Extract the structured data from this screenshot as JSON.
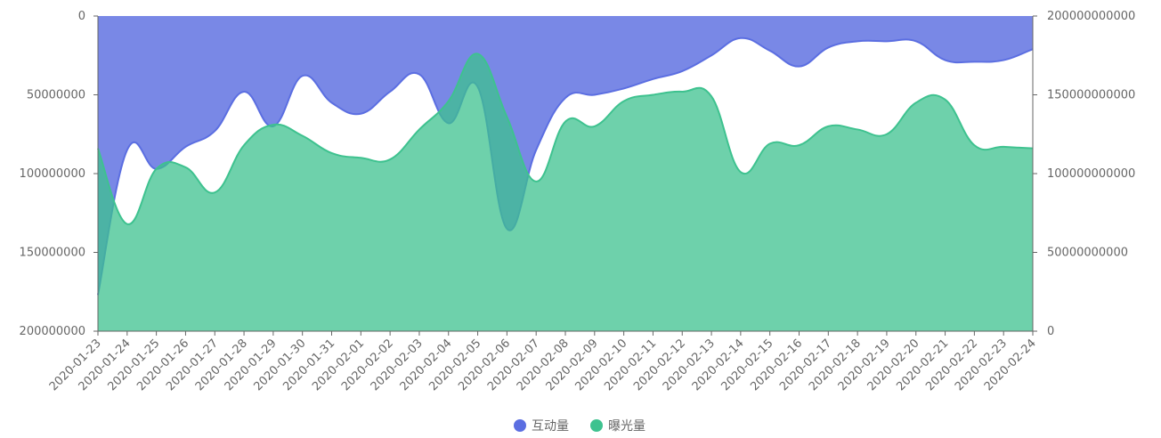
{
  "chart_data": {
    "type": "area",
    "x": [
      "2020-01-23",
      "2020-01-24",
      "2020-01-25",
      "2020-01-26",
      "2020-01-27",
      "2020-01-28",
      "2020-01-29",
      "2020-01-30",
      "2020-01-31",
      "2020-02-01",
      "2020-02-02",
      "2020-02-03",
      "2020-02-04",
      "2020-02-05",
      "2020-02-06",
      "2020-02-07",
      "2020-02-08",
      "2020-02-09",
      "2020-02-10",
      "2020-02-11",
      "2020-02-12",
      "2020-02-13",
      "2020-02-14",
      "2020-02-15",
      "2020-02-16",
      "2020-02-17",
      "2020-02-18",
      "2020-02-19",
      "2020-02-20",
      "2020-02-21",
      "2020-02-22",
      "2020-02-23",
      "2020-02-24"
    ],
    "series": [
      {
        "name": "互动量",
        "axis": "left",
        "inverse": true,
        "color": "#5b6ee1",
        "values": [
          177000000,
          85000000,
          97000000,
          83000000,
          73000000,
          48000000,
          70000000,
          38000000,
          55000000,
          62000000,
          48000000,
          37000000,
          68000000,
          45000000,
          135000000,
          85000000,
          52000000,
          50000000,
          46000000,
          40000000,
          35000000,
          25000000,
          14000000,
          22000000,
          32000000,
          20000000,
          16000000,
          16000000,
          16000000,
          28000000,
          29000000,
          28000000,
          21000000
        ]
      },
      {
        "name": "曝光量",
        "axis": "right",
        "color": "#3ec28f",
        "values": [
          116000000000,
          68000000000,
          103000000000,
          104000000000,
          88000000000,
          118000000000,
          131000000000,
          124000000000,
          113000000000,
          110000000000,
          109000000000,
          128000000000,
          146000000000,
          176000000000,
          136000000000,
          95000000000,
          133000000000,
          130000000000,
          146000000000,
          150000000000,
          152000000000,
          149000000000,
          101000000000,
          119000000000,
          118000000000,
          130000000000,
          128000000000,
          125000000000,
          145000000000,
          147000000000,
          118000000000,
          117000000000,
          116000000000
        ]
      }
    ],
    "y_left": {
      "ticks": [
        "0",
        "50000000",
        "100000000",
        "150000000",
        "200000000"
      ],
      "min": 0,
      "max": 200000000,
      "inverse": true
    },
    "y_right": {
      "ticks": [
        "0",
        "50000000000",
        "100000000000",
        "150000000000",
        "200000000000"
      ],
      "min": 0,
      "max": 200000000000
    },
    "legend_position": "bottom-center",
    "grid": false
  }
}
